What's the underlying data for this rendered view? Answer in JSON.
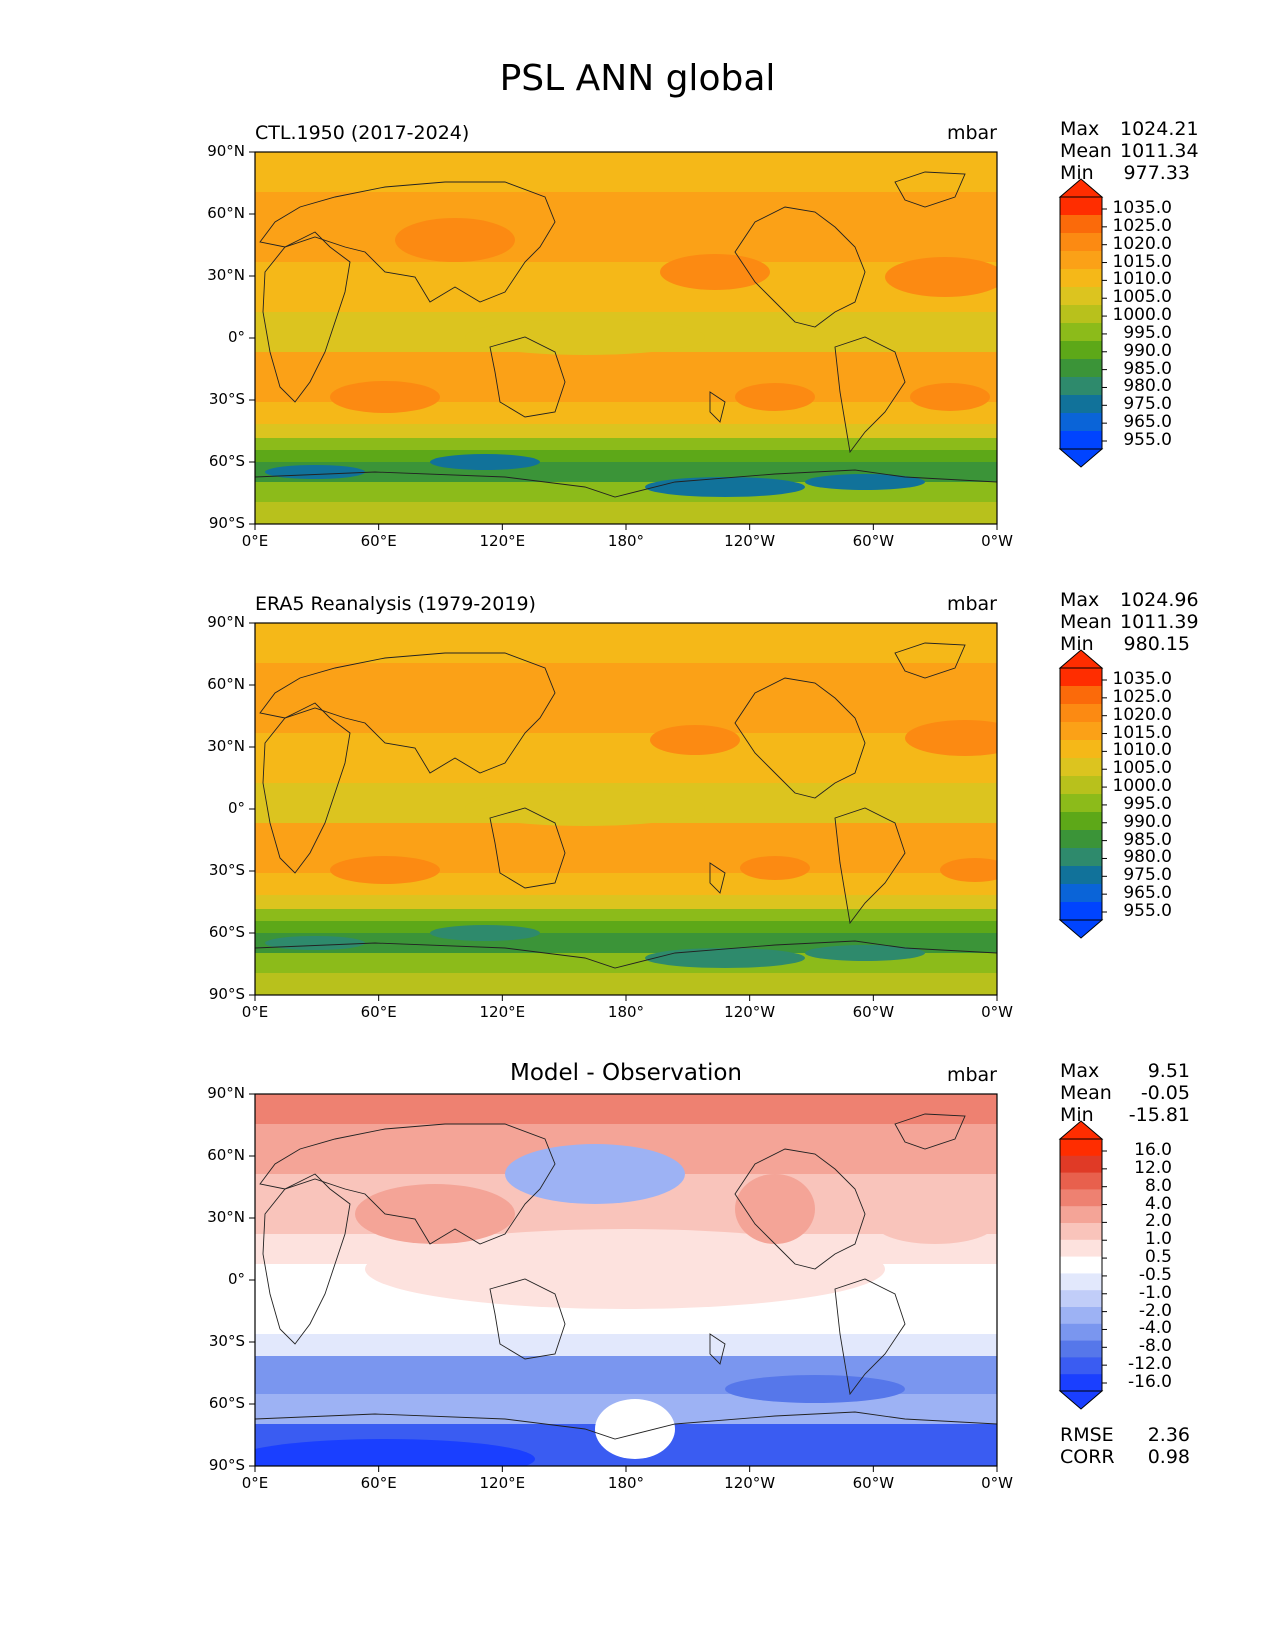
{
  "figure_title": "PSL ANN global",
  "panels": [
    {
      "id": "test",
      "left_title": "CTL.1950 (2017-2024)",
      "center_title": "",
      "units": "mbar",
      "stats": {
        "max_label": "Max",
        "max": "1024.21",
        "mean_label": "Mean",
        "mean": "1011.34",
        "min_label": "Min",
        "min": "977.33"
      },
      "colorbar_ticks": [
        "1035.0",
        "1025.0",
        "1020.0",
        "1015.0",
        "1010.0",
        "1005.0",
        "1000.0",
        "995.0",
        "990.0",
        "985.0",
        "980.0",
        "975.0",
        "965.0",
        "955.0"
      ]
    },
    {
      "id": "ref",
      "left_title": "ERA5 Reanalysis (1979-2019)",
      "center_title": "",
      "units": "mbar",
      "stats": {
        "max_label": "Max",
        "max": "1024.96",
        "mean_label": "Mean",
        "mean": "1011.39",
        "min_label": "Min",
        "min": "980.15"
      },
      "colorbar_ticks": [
        "1035.0",
        "1025.0",
        "1020.0",
        "1015.0",
        "1010.0",
        "1005.0",
        "1000.0",
        "995.0",
        "990.0",
        "985.0",
        "980.0",
        "975.0",
        "965.0",
        "955.0"
      ]
    },
    {
      "id": "diff",
      "left_title": "",
      "center_title": "Model - Observation",
      "units": "mbar",
      "stats": {
        "max_label": "Max",
        "max": "9.51",
        "mean_label": "Mean",
        "mean": "-0.05",
        "min_label": "Min",
        "min": "-15.81"
      },
      "colorbar_ticks": [
        "16.0",
        "12.0",
        "8.0",
        "4.0",
        "2.0",
        "1.0",
        "0.5",
        "-0.5",
        "-1.0",
        "-2.0",
        "-4.0",
        "-8.0",
        "-12.0",
        "-16.0"
      ],
      "extra": {
        "rmse_label": "RMSE",
        "rmse": "2.36",
        "corr_label": "CORR",
        "corr": "0.98"
      }
    }
  ],
  "chart_data": {
    "type": "heatmap",
    "title": "PSL ANN global",
    "variable": "PSL",
    "units": "mbar",
    "x_ticks": [
      "0°E",
      "60°E",
      "120°E",
      "180°",
      "120°W",
      "60°W",
      "0°W"
    ],
    "y_ticks": [
      "90°N",
      "60°N",
      "30°N",
      "0°",
      "30°S",
      "60°S",
      "90°S"
    ],
    "xlim": [
      0,
      360
    ],
    "ylim": [
      -90,
      90
    ],
    "abs_colormap": [
      "#0044ff",
      "#0a64d8",
      "#11729a",
      "#2e8a6c",
      "#3b9438",
      "#5da818",
      "#8cbb1a",
      "#b8c11c",
      "#dcc41f",
      "#f5b818",
      "#fba117",
      "#fc8a12",
      "#fb6a0a",
      "#ff2d00"
    ],
    "diff_colormap": [
      "#1a3fff",
      "#3a5cf2",
      "#5677ea",
      "#7a96ef",
      "#9db2f4",
      "#c1cdf8",
      "#e2e8fc",
      "#ffffff",
      "#fde2de",
      "#f9c4bb",
      "#f4a497",
      "#ee8171",
      "#e8604d",
      "#e03a26",
      "#ff2d00"
    ]
  }
}
